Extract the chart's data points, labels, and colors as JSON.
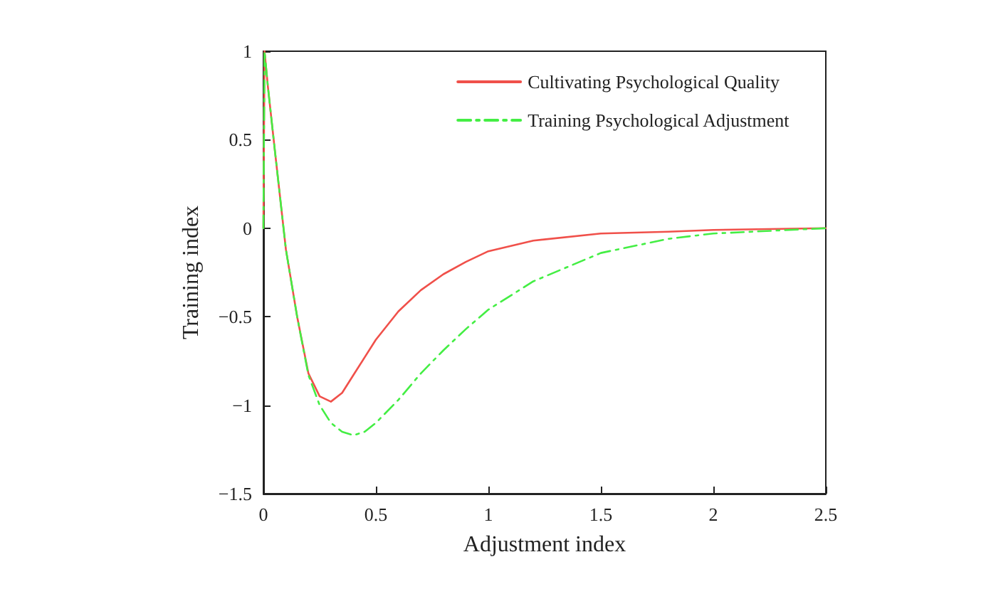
{
  "chart_data": {
    "type": "line",
    "xlabel": "Adjustment index",
    "ylabel": "Training index",
    "x": [
      0,
      0.005,
      0.02,
      0.05,
      0.1,
      0.15,
      0.2,
      0.25,
      0.3,
      0.35,
      0.4,
      0.45,
      0.5,
      0.6,
      0.7,
      0.8,
      0.9,
      1.0,
      1.2,
      1.5,
      1.8,
      2.0,
      2.5
    ],
    "series": [
      {
        "name": "Cultivating Psychological Quality",
        "color": "#f0504a",
        "line_style": "solid",
        "values": [
          0,
          1,
          0.8,
          0.45,
          -0.12,
          -0.5,
          -0.82,
          -0.95,
          -0.98,
          -0.93,
          -0.83,
          -0.73,
          -0.63,
          -0.47,
          -0.35,
          -0.26,
          -0.19,
          -0.13,
          -0.07,
          -0.03,
          -0.02,
          -0.01,
          0
        ]
      },
      {
        "name": "Training Psychological Adjustment",
        "color": "#44ee44",
        "line_style": "dashed",
        "values": [
          0,
          1,
          0.8,
          0.45,
          -0.12,
          -0.5,
          -0.83,
          -1.0,
          -1.1,
          -1.15,
          -1.17,
          -1.15,
          -1.1,
          -0.97,
          -0.82,
          -0.69,
          -0.57,
          -0.46,
          -0.3,
          -0.14,
          -0.06,
          -0.03,
          0
        ]
      }
    ],
    "xlim": [
      0,
      2.5
    ],
    "xticks": [
      0,
      0.5,
      1,
      1.5,
      2,
      2.5
    ],
    "ylim": [
      -1.5,
      1
    ],
    "yticks": [
      -1.5,
      -1,
      -0.5,
      0,
      0.5,
      1
    ],
    "grid": false,
    "legend": "top right",
    "marker": "none"
  }
}
